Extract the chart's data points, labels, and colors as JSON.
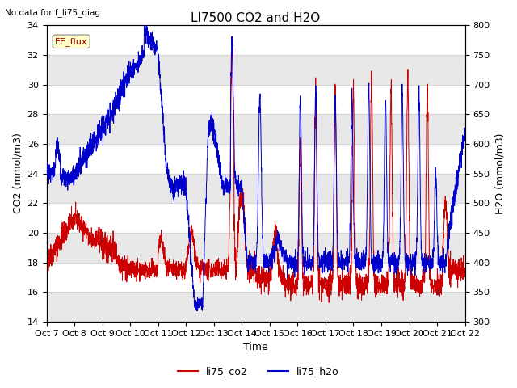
{
  "title": "LI7500 CO2 and H2O",
  "xlabel": "Time",
  "ylabel_left": "CO2 (mmol/m3)",
  "ylabel_right": "H2O (mmol/m3)",
  "ylim_left": [
    14,
    34
  ],
  "ylim_right": [
    300,
    800
  ],
  "yticks_left": [
    14,
    16,
    18,
    20,
    22,
    24,
    26,
    28,
    30,
    32,
    34
  ],
  "yticks_right": [
    300,
    350,
    400,
    450,
    500,
    550,
    600,
    650,
    700,
    750,
    800
  ],
  "xtick_labels": [
    "Oct 7",
    "Oct 8",
    "Oct 9",
    "Oct 10",
    "Oct 11",
    "Oct 12",
    "Oct 13",
    "Oct 14",
    "Oct 15",
    "Oct 16",
    "Oct 17",
    "Oct 18",
    "Oct 19",
    "Oct 20",
    "Oct 21",
    "Oct 22"
  ],
  "no_data_text": "No data for f_li75_diag",
  "annotation_text": "EE_flux",
  "co2_color": "#cc0000",
  "h2o_color": "#0000cc",
  "bg_color": "#ffffff",
  "grid_color": "#cccccc",
  "band_color": "#e8e8e8",
  "title_fontsize": 11,
  "label_fontsize": 9,
  "tick_fontsize": 8,
  "legend_co2": "li75_co2",
  "legend_h2o": "li75_h2o"
}
